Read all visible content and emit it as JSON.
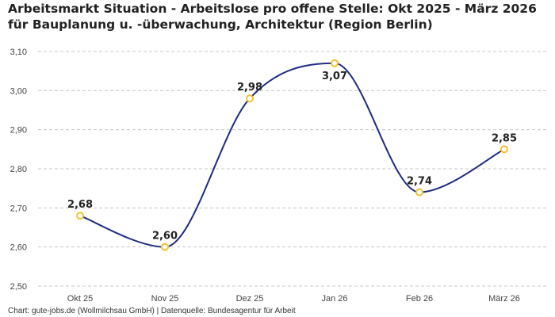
{
  "chart_data": {
    "type": "line",
    "title": "Arbeitsmarkt Situation - Arbeitslose pro offene Stelle: Okt 2025 - März 2026 für Bauplanung u. -überwachung, Architektur (Region Berlin)",
    "categories": [
      "Okt 25",
      "Nov 25",
      "Dez 25",
      "Jan 26",
      "Feb 26",
      "März 26"
    ],
    "values": [
      2.68,
      2.6,
      2.98,
      3.07,
      2.74,
      2.85
    ],
    "value_labels": [
      "2,68",
      "2,60",
      "2,98",
      "3,07",
      "2,74",
      "2,85"
    ],
    "y_ticks": [
      2.5,
      2.6,
      2.7,
      2.8,
      2.9,
      3.0,
      3.1
    ],
    "y_tick_labels": [
      "2,50",
      "2,60",
      "2,70",
      "2,80",
      "2,90",
      "3,00",
      "3,10"
    ],
    "ylim": [
      2.5,
      3.12
    ],
    "grid": true,
    "line_color": "#1f2a80",
    "marker_color": "#f2c12e",
    "grid_color": "#c8c8c8"
  },
  "footer": {
    "source": "Chart: gute-jobs.de (Wollmilchsau GmbH) | Datenquelle: Bundesagentur für Arbeit"
  }
}
